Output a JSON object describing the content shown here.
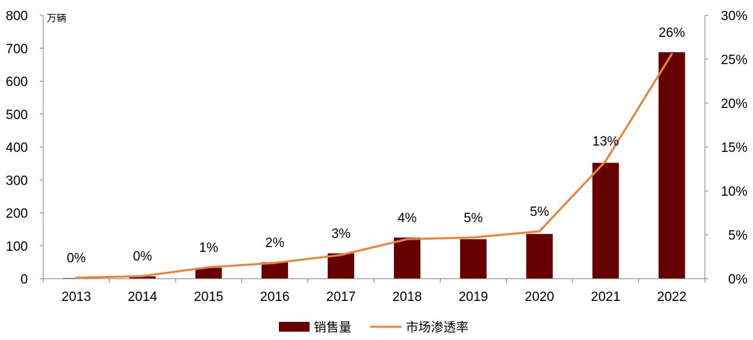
{
  "chart_data": {
    "type": "bar+line",
    "unit_label": "万辆",
    "categories": [
      "2013",
      "2014",
      "2015",
      "2016",
      "2017",
      "2018",
      "2019",
      "2020",
      "2021",
      "2022"
    ],
    "series": [
      {
        "name": "销售量",
        "type": "bar",
        "axis": "left",
        "color": "#660000",
        "values": [
          2,
          7,
          33,
          50,
          77,
          125,
          120,
          136,
          352,
          688
        ]
      },
      {
        "name": "市场渗透率",
        "type": "line",
        "axis": "right",
        "color": "#e8843c",
        "values": [
          0.1,
          0.3,
          1.3,
          1.8,
          2.7,
          4.5,
          4.7,
          5.4,
          13.4,
          25.6
        ],
        "data_labels": [
          "0%",
          "0%",
          "1%",
          "2%",
          "3%",
          "4%",
          "5%",
          "5%",
          "13%",
          "26%"
        ]
      }
    ],
    "y_left": {
      "min": 0,
      "max": 800,
      "ticks": [
        "0",
        "100",
        "200",
        "300",
        "400",
        "500",
        "600",
        "700",
        "800"
      ]
    },
    "y_right": {
      "min": 0,
      "max": 30,
      "ticks": [
        "0%",
        "5%",
        "10%",
        "15%",
        "20%",
        "25%",
        "30%"
      ]
    },
    "grid": false,
    "legend_position": "bottom"
  }
}
